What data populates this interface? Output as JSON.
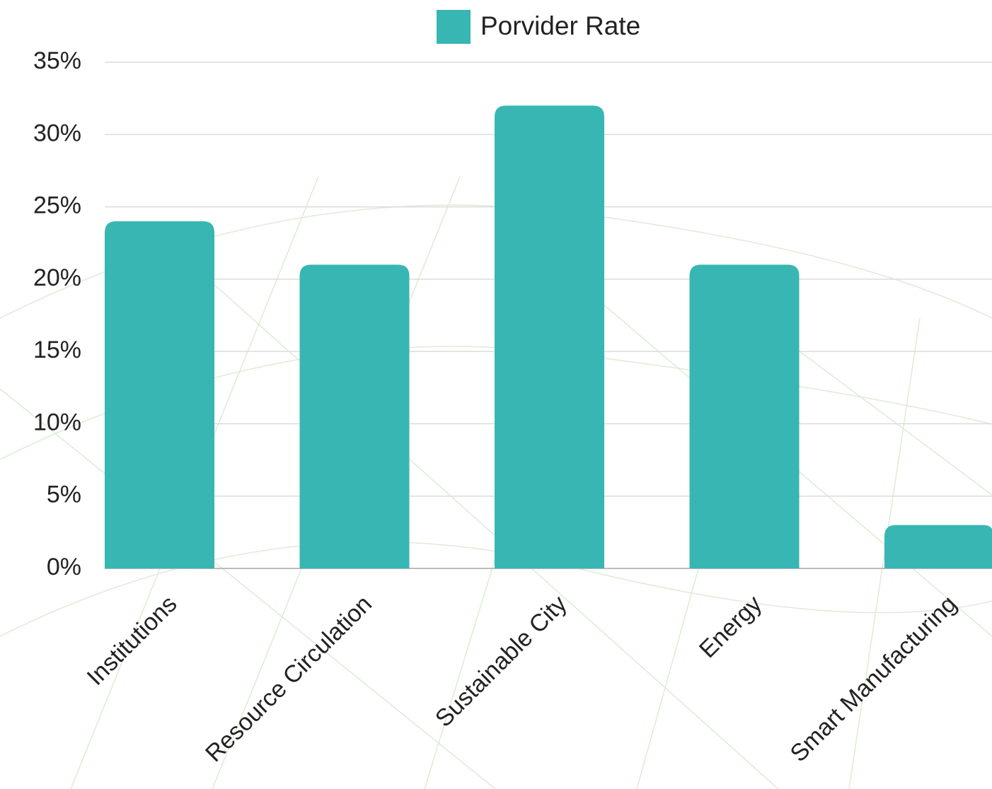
{
  "chart_data": {
    "type": "bar",
    "categories": [
      "Institutions",
      "Resource Circulation",
      "Sustainable City",
      "Energy",
      "Smart Manufacturing"
    ],
    "series": [
      {
        "name": "Porvider Rate",
        "color": "#38b6b4",
        "values": [
          24,
          21,
          32,
          21,
          3
        ]
      }
    ],
    "ylim": [
      0,
      35
    ],
    "yticks": [
      {
        "value": 0,
        "label": "0%"
      },
      {
        "value": 5,
        "label": "5%"
      },
      {
        "value": 10,
        "label": "10%"
      },
      {
        "value": 15,
        "label": "15%"
      },
      {
        "value": 20,
        "label": "20%"
      },
      {
        "value": 25,
        "label": "25%"
      },
      {
        "value": 30,
        "label": "30%"
      },
      {
        "value": 35,
        "label": "35%"
      }
    ],
    "grid": true,
    "legend": "top"
  }
}
